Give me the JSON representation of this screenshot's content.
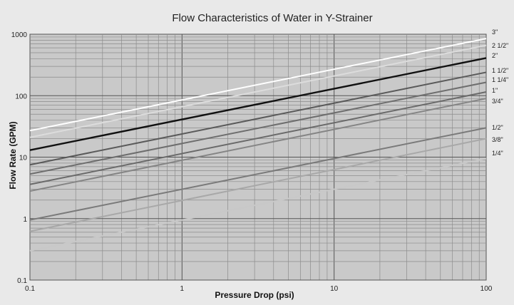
{
  "chart_data": {
    "type": "line",
    "title": "Flow Characteristics of Water in Y-Strainer",
    "xlabel": "Pressure Drop (psi)",
    "ylabel": "Flow Rate (GPM)",
    "xscale": "log",
    "yscale": "log",
    "xlim": [
      0.1,
      100
    ],
    "ylim": [
      0.1,
      1000
    ],
    "xticks": [
      "0.1",
      "1",
      "10",
      "100"
    ],
    "yticks": [
      "0.1",
      "1",
      "10",
      "100",
      "1000"
    ],
    "grid": true,
    "series": [
      {
        "name": "3\"",
        "color": "#ffffff",
        "x": [
          0.1,
          100
        ],
        "y": [
          27,
          850
        ]
      },
      {
        "name": "2 1/2\"",
        "color": "#dcdcdc",
        "x": [
          0.1,
          100
        ],
        "y": [
          21,
          660
        ]
      },
      {
        "name": "2\"",
        "color": "#111111",
        "x": [
          0.1,
          100
        ],
        "y": [
          13,
          410
        ]
      },
      {
        "name": "1 1/2\"",
        "color": "#5a5a5a",
        "x": [
          0.1,
          100
        ],
        "y": [
          7.5,
          240
        ]
      },
      {
        "name": "1 1/4\"",
        "color": "#6e6e6e",
        "x": [
          0.1,
          100
        ],
        "y": [
          5.3,
          165
        ]
      },
      {
        "name": "1\"",
        "color": "#6a6a6a",
        "x": [
          0.1,
          100
        ],
        "y": [
          3.6,
          115
        ]
      },
      {
        "name": "3/4\"",
        "color": "#858585",
        "x": [
          0.1,
          100
        ],
        "y": [
          2.8,
          90
        ]
      },
      {
        "name": "1/2\"",
        "color": "#7a7a7a",
        "x": [
          0.1,
          100
        ],
        "y": [
          0.95,
          30
        ]
      },
      {
        "name": "3/8\"",
        "color": "#a8a8a8",
        "x": [
          0.1,
          100
        ],
        "y": [
          0.62,
          20
        ]
      },
      {
        "name": "1/4\"",
        "color": "#c8c8c8",
        "x": [
          0.1,
          100
        ],
        "y": [
          0.3,
          9.5
        ]
      }
    ],
    "labels": [
      "3\"",
      "2 1/2\"",
      "2\"",
      "1 1/2\"",
      "1 1/4\"",
      "1\"",
      "3/4\"",
      "1/2\"",
      "3/8\"",
      "1/4\""
    ]
  }
}
